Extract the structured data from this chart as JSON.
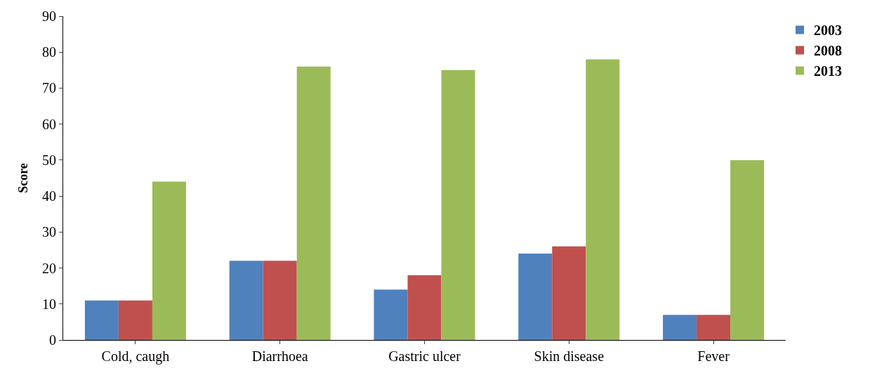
{
  "chart_data": {
    "type": "bar",
    "ylabel": "Score",
    "categories": [
      "Cold, caugh",
      "Diarrhoea",
      "Gastric ulcer",
      "Skin disease",
      "Fever"
    ],
    "series": [
      {
        "name": "2003",
        "color": "#4f81bd",
        "values": [
          11,
          22,
          14,
          24,
          7
        ]
      },
      {
        "name": "2008",
        "color": "#c0504d",
        "values": [
          11,
          22,
          18,
          26,
          7
        ]
      },
      {
        "name": "2013",
        "color": "#9bbb59",
        "values": [
          44,
          76,
          75,
          78,
          50
        ]
      }
    ],
    "ylim": [
      0,
      90
    ],
    "yticks": [
      0,
      10,
      20,
      30,
      40,
      50,
      60,
      70,
      80,
      90
    ],
    "grid": false,
    "legend": "top right"
  }
}
